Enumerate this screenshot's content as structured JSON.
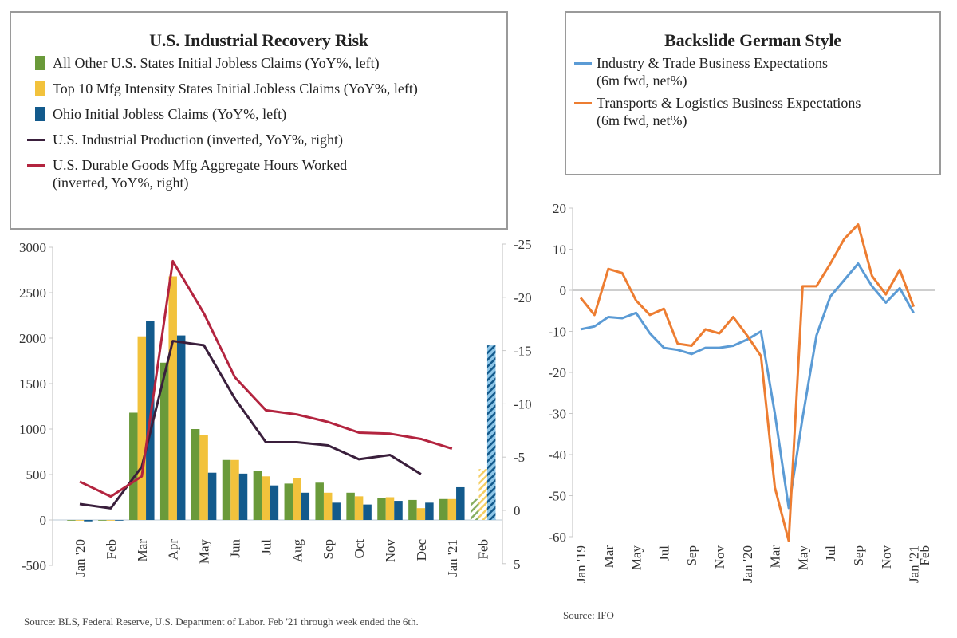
{
  "chart_data": [
    {
      "type": "bar",
      "title": "U.S. Industrial Recovery Risk",
      "xlabel": "",
      "ylabel_left": "",
      "ylabel_right": "",
      "categories": [
        "Jan '20",
        "Feb",
        "Mar",
        "Apr",
        "May",
        "Jun",
        "Jul",
        "Aug",
        "Sep",
        "Oct",
        "Nov",
        "Dec",
        "Jan '21",
        "Feb"
      ],
      "ylim_left": [
        -500,
        3000
      ],
      "yticks_left": [
        -500,
        0,
        500,
        1000,
        1500,
        2000,
        2500,
        3000
      ],
      "ylim_right": [
        5,
        -25
      ],
      "yticks_right": [
        5,
        0,
        -5,
        -10,
        -15,
        -20,
        -25
      ],
      "right_axis_inverted": true,
      "hatched_categories": [
        "Feb"
      ],
      "series": [
        {
          "name": "All Other U.S. States Initial Jobless Claims (YoY%, left)",
          "kind": "bar",
          "axis": "left",
          "color": "#6a9a3a",
          "values": [
            0,
            0,
            1180,
            1730,
            1000,
            660,
            540,
            400,
            410,
            300,
            240,
            220,
            230,
            230
          ]
        },
        {
          "name": "Top 10 Mfg Intensity States Initial Jobless Claims (YoY%, left)",
          "kind": "bar",
          "axis": "left",
          "color": "#f2c23c",
          "values": [
            0,
            0,
            2020,
            2680,
            930,
            660,
            480,
            460,
            300,
            260,
            250,
            130,
            230,
            560
          ]
        },
        {
          "name": "Ohio Initial Jobless Claims (YoY%, left)",
          "kind": "bar",
          "axis": "left",
          "color": "#135a8c",
          "values": [
            -15,
            0,
            2190,
            2030,
            520,
            510,
            380,
            300,
            190,
            170,
            210,
            190,
            360,
            1920
          ]
        },
        {
          "name": "U.S. Industrial Production (inverted, YoY%, right)",
          "kind": "line",
          "axis": "right",
          "color": "#3a1f3c",
          "values": [
            -0.6,
            -0.2,
            -4.1,
            -15.9,
            -15.5,
            -10.5,
            -6.4,
            -6.4,
            -6.1,
            -4.8,
            -5.2,
            -3.4,
            null,
            null
          ]
        },
        {
          "name": "U.S. Durable Goods Mfg Aggregate Hours Worked (inverted, YoY%, right)",
          "kind": "line",
          "axis": "right",
          "color": "#b3243f",
          "values": [
            -2.7,
            -1.3,
            -3.2,
            -23.4,
            -18.5,
            -12.5,
            -9.4,
            -9.0,
            -8.3,
            -7.3,
            -7.2,
            -6.7,
            -5.8,
            null
          ]
        }
      ],
      "legend": "top",
      "grid": false,
      "source": "Source:  BLS, Federal Reserve, U.S. Department of Labor. Feb '21 through week ended the 6th."
    },
    {
      "type": "line",
      "title": "Backslide German Style",
      "xlabel": "",
      "ylabel": "",
      "x": [
        "Jan '19",
        "Feb",
        "Mar",
        "Apr",
        "May",
        "Jun",
        "Jul",
        "Aug",
        "Sep",
        "Oct",
        "Nov",
        "Dec",
        "Jan '20",
        "Feb",
        "Mar",
        "Apr",
        "May",
        "Jun",
        "Jul",
        "Aug",
        "Sep",
        "Oct",
        "Nov",
        "Dec",
        "Jan '21"
      ],
      "xtick_labels": [
        "Jan '19",
        "Mar",
        "May",
        "Jul",
        "Sep",
        "Nov",
        "Jan '20",
        "Mar",
        "May",
        "Jul",
        "Sep",
        "Nov",
        "Jan '21",
        "Feb"
      ],
      "ylim": [
        -60,
        20
      ],
      "yticks": [
        20,
        10,
        0,
        -10,
        -20,
        -30,
        -40,
        -50,
        -60
      ],
      "series": [
        {
          "name": "Industry & Trade Business Expectations (6m fwd, net%)",
          "color": "#5b9bd5",
          "values": [
            -9.5,
            -8.8,
            -6.5,
            -6.8,
            -5.5,
            -10.5,
            -14.0,
            -14.5,
            -15.5,
            -14.0,
            -14.0,
            -13.5,
            -12.0,
            -10.0,
            -30.0,
            -53.0,
            -31.0,
            -11.0,
            -1.5,
            2.5,
            6.5,
            1.0,
            -3.0,
            0.5,
            -5.5
          ]
        },
        {
          "name": "Transports & Logistics Business Expectations (6m fwd, net%)",
          "color": "#ed7d31",
          "values": [
            -1.8,
            -6.0,
            5.2,
            4.2,
            -2.5,
            -6.0,
            -4.5,
            -13.0,
            -13.5,
            -9.5,
            -10.5,
            -6.5,
            -11.0,
            -16.0,
            -48.0,
            -61.0,
            1.0,
            1.0,
            6.5,
            12.5,
            16.0,
            3.5,
            -1.0,
            5.0,
            -4.0
          ]
        }
      ],
      "horizontal_reference_line": 0,
      "legend": "top",
      "grid": false,
      "source": "Source:  IFO"
    }
  ],
  "left_legend": {
    "title": "U.S. Industrial Recovery Risk",
    "items": [
      "All Other U.S. States Initial Jobless Claims (YoY%, left)",
      "Top 10 Mfg Intensity States Initial Jobless Claims (YoY%, left)",
      "Ohio Initial Jobless Claims (YoY%, left)",
      "U.S. Industrial Production (inverted, YoY%, right)",
      "U.S. Durable Goods Mfg Aggregate Hours Worked",
      "(inverted, YoY%, right)"
    ]
  },
  "right_legend": {
    "title": "Backslide German Style",
    "items": [
      "Industry & Trade Business Expectations",
      "(6m fwd, net%)",
      "Transports & Logistics Business Expectations",
      "(6m fwd, net%)"
    ]
  },
  "colors": {
    "green": "#6a9a3a",
    "yellow": "#f2c23c",
    "blue": "#135a8c",
    "purple": "#3a1f3c",
    "red": "#b3243f",
    "light_blue": "#5b9bd5",
    "orange": "#ed7d31"
  }
}
